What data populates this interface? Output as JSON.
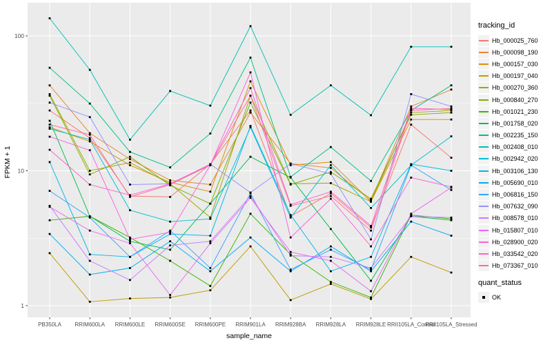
{
  "chart_data": {
    "type": "line",
    "xlabel": "sample_name",
    "ylabel": "FPKM + 1",
    "x_categories": [
      "PB350LA",
      "RRIM600LA",
      "RRIM600LE",
      "RRIM600SE",
      "RRIM600PE",
      "RRIM901LA",
      "RRIM928BA",
      "RRIM928LA",
      "RRIM928LE",
      "RRII105LA_Control",
      "RRII105LA_Stressed"
    ],
    "y_axis": {
      "scale": "log10",
      "breaks": [
        1,
        10,
        100
      ],
      "tick_labels": [
        "1",
        "10",
        "100"
      ],
      "minor_breaks": [
        3.162,
        31.62
      ],
      "range": [
        0.82,
        176
      ]
    },
    "grid": "on",
    "panel_background": "#EBEBEB",
    "gridline_color": "#FFFFFF",
    "tick_color": "#333333",
    "tick_label_color": "#4D4D4D",
    "point_style": {
      "shape": "filled-square",
      "color": "#000000",
      "meaning": "quant_status OK"
    },
    "legend": {
      "position": "right",
      "color_title": "tracking_id",
      "shape_title": "quant_status",
      "shape_items": [
        {
          "label": "OK"
        }
      ]
    },
    "series": [
      {
        "name": "Hb_000025_760",
        "color": "#F8766D",
        "values": [
          28,
          17.5,
          6.5,
          6.4,
          11.2,
          28,
          4.6,
          6.8,
          3.8,
          22,
          12.5
        ]
      },
      {
        "name": "Hb_000098_190",
        "color": "#EA8331",
        "values": [
          43,
          19,
          12.2,
          8.5,
          7.9,
          27,
          11.3,
          10.5,
          6.0,
          30,
          40
        ]
      },
      {
        "name": "Hb_000157_030",
        "color": "#D89000",
        "values": [
          21,
          16.5,
          11,
          8.2,
          7.0,
          46,
          11,
          11.6,
          5.9,
          24,
          24
        ]
      },
      {
        "name": "Hb_000197_040",
        "color": "#C09B00",
        "values": [
          2.45,
          1.07,
          1.13,
          1.15,
          1.3,
          2.75,
          1.1,
          1.45,
          1.12,
          2.3,
          1.76
        ]
      },
      {
        "name": "Hb_000270_360",
        "color": "#A3A500",
        "values": [
          37,
          10,
          11.5,
          8.0,
          4.5,
          36,
          8.0,
          8.1,
          5.9,
          27,
          28
        ]
      },
      {
        "name": "Hb_000840_270",
        "color": "#7CAE00",
        "values": [
          36,
          9.4,
          12.7,
          7.8,
          5.7,
          32,
          7.9,
          9.8,
          6.2,
          26,
          27
        ]
      },
      {
        "name": "Hb_001021_230",
        "color": "#39B600",
        "values": [
          4.3,
          4.6,
          3.2,
          2.15,
          1.4,
          4.8,
          2.4,
          1.5,
          1.15,
          4.7,
          4.4
        ]
      },
      {
        "name": "Hb_001758_020",
        "color": "#00BB4E",
        "values": [
          23.5,
          4.6,
          3.0,
          2.6,
          5.7,
          12.7,
          8.9,
          3.7,
          1.53,
          4.6,
          4.3
        ]
      },
      {
        "name": "Hb_002235_150",
        "color": "#00C087",
        "values": [
          58,
          31.5,
          13.8,
          10.6,
          18.9,
          69,
          9.0,
          15,
          8.4,
          28,
          43
        ]
      },
      {
        "name": "Hb_002408_010",
        "color": "#00C0B2",
        "values": [
          135,
          56,
          17,
          39,
          30.4,
          118,
          26,
          43,
          25.8,
          83,
          83
        ]
      },
      {
        "name": "Hb_002942_020",
        "color": "#00BFD4",
        "values": [
          20.5,
          17,
          5.1,
          4.2,
          4.4,
          21,
          4.5,
          11,
          5.3,
          11,
          18
        ]
      },
      {
        "name": "Hb_003106_130",
        "color": "#00B8E7",
        "values": [
          11.6,
          2.4,
          2.3,
          3.4,
          3.3,
          21.5,
          4.7,
          1.8,
          2.3,
          11.2,
          10
        ]
      },
      {
        "name": "Hb_005690_010",
        "color": "#00ACF4",
        "values": [
          3.4,
          1.7,
          1.9,
          3.0,
          1.8,
          3.2,
          1.8,
          2.75,
          1.8,
          4.2,
          3.3
        ]
      },
      {
        "name": "Hb_006816_150",
        "color": "#35A2FF",
        "values": [
          7.1,
          4.5,
          2.3,
          3.6,
          1.9,
          6.8,
          1.85,
          2.6,
          1.85,
          11,
          7.2
        ]
      },
      {
        "name": "Hb_007632_090",
        "color": "#9590FF",
        "values": [
          32,
          25,
          7.9,
          8.0,
          11.2,
          6.9,
          11.3,
          9.5,
          3.1,
          37,
          30
        ]
      },
      {
        "name": "Hb_008578_010",
        "color": "#C77CFF",
        "values": [
          5.5,
          2.15,
          1.55,
          2.8,
          3.0,
          6.5,
          2.35,
          2.3,
          1.9,
          4.6,
          4.5
        ]
      },
      {
        "name": "Hb_015807_010",
        "color": "#E76BF3",
        "values": [
          5.4,
          3.6,
          2.9,
          1.2,
          2.9,
          6.3,
          2.5,
          2.15,
          1.28,
          4.8,
          7.5
        ]
      },
      {
        "name": "Hb_028900_020",
        "color": "#FA62DB",
        "values": [
          17.9,
          14.2,
          3.1,
          3.5,
          11.0,
          53.6,
          3.2,
          6.2,
          2.75,
          8.9,
          7.6
        ]
      },
      {
        "name": "Hb_033542_020",
        "color": "#FF61C9",
        "values": [
          14.3,
          7.9,
          6.6,
          8.0,
          11.1,
          41,
          5.6,
          7.0,
          3.9,
          29,
          28.5
        ]
      },
      {
        "name": "Hb_073367_010",
        "color": "#FF6A98",
        "values": [
          22,
          18.5,
          6.4,
          7.9,
          11.0,
          36,
          5.5,
          6.5,
          3.6,
          28,
          29
        ]
      }
    ]
  }
}
